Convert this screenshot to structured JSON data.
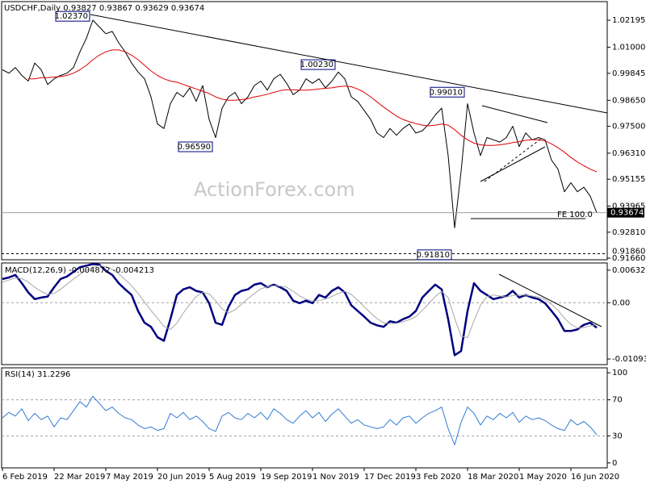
{
  "chart_data": [
    {
      "type": "line",
      "title": "USDCHF,Daily 0.93827 0.93867 0.93629 0.93674",
      "watermark": "ActionForex.com",
      "categories": [
        "6 Feb 2019",
        null,
        null,
        null,
        null,
        null,
        null,
        null,
        "22 Mar 2019",
        null,
        null,
        null,
        null,
        null,
        null,
        null,
        "7 May 2019",
        null,
        null,
        null,
        null,
        null,
        null,
        null,
        "20 Jun 2019",
        null,
        null,
        null,
        null,
        null,
        null,
        null,
        "5 Aug 2019",
        null,
        null,
        null,
        null,
        null,
        null,
        null,
        "19 Sep 2019",
        null,
        null,
        null,
        null,
        null,
        null,
        null,
        "1 Nov 2019",
        null,
        null,
        null,
        null,
        null,
        null,
        null,
        "17 Dec 2019",
        null,
        null,
        null,
        null,
        null,
        null,
        null,
        "3 Feb 2020",
        null,
        null,
        null,
        null,
        null,
        null,
        null,
        "18 Mar 2020",
        null,
        null,
        null,
        null,
        null,
        null,
        null,
        "1 May 2020",
        null,
        null,
        null,
        null,
        null,
        null,
        null,
        "16 Jun 2020",
        null,
        null,
        null,
        null
      ],
      "series": [
        {
          "name": "USDCHF",
          "color": "#000000",
          "values": [
            1.0,
            0.9985,
            1.001,
            0.9975,
            0.995,
            1.003,
            1.0,
            0.9935,
            0.996,
            0.9975,
            0.9985,
            1.001,
            1.008,
            1.014,
            1.022,
            1.019,
            1.016,
            1.017,
            1.012,
            1.008,
            1.003,
            0.999,
            0.996,
            0.988,
            0.976,
            0.974,
            0.985,
            0.99,
            0.988,
            0.992,
            0.986,
            0.993,
            0.978,
            0.97,
            0.983,
            0.988,
            0.99,
            0.985,
            0.988,
            0.993,
            0.995,
            0.991,
            0.996,
            0.998,
            0.994,
            0.989,
            0.991,
            0.996,
            0.994,
            0.996,
            0.992,
            0.995,
            0.999,
            0.996,
            0.988,
            0.986,
            0.982,
            0.978,
            0.972,
            0.97,
            0.974,
            0.971,
            0.974,
            0.976,
            0.972,
            0.973,
            0.976,
            0.98,
            0.983,
            0.962,
            0.93,
            0.955,
            0.985,
            0.972,
            0.962,
            0.97,
            0.969,
            0.968,
            0.97,
            0.975,
            0.966,
            0.972,
            0.969,
            0.97,
            0.969,
            0.96,
            0.956,
            0.946,
            0.95,
            0.946,
            0.948,
            0.944,
            0.93674
          ]
        },
        {
          "name": "MA",
          "color": "#dd0000",
          "values": [
            null,
            null,
            null,
            null,
            0.996,
            0.996,
            0.9965,
            0.9965,
            0.9968,
            0.997,
            0.9975,
            0.9985,
            1.0,
            1.002,
            1.0045,
            1.0065,
            1.008,
            1.0088,
            1.0088,
            1.008,
            1.0065,
            1.0045,
            1.002,
            0.9995,
            0.9975,
            0.996,
            0.995,
            0.9945,
            0.9935,
            0.9925,
            0.9915,
            0.9905,
            0.9895,
            0.988,
            0.987,
            0.9865,
            0.9865,
            0.9868,
            0.9872,
            0.988,
            0.9885,
            0.9892,
            0.99,
            0.9908,
            0.9912,
            0.9912,
            0.991,
            0.991,
            0.9912,
            0.9915,
            0.9918,
            0.992,
            0.9925,
            0.9928,
            0.9925,
            0.9915,
            0.99,
            0.988,
            0.9858,
            0.9835,
            0.9815,
            0.9795,
            0.978,
            0.977,
            0.9762,
            0.9755,
            0.9752,
            0.9755,
            0.976,
            0.9755,
            0.9735,
            0.971,
            0.969,
            0.9675,
            0.9668,
            0.9665,
            0.9665,
            0.9668,
            0.9672,
            0.9678,
            0.9682,
            0.9688,
            0.969,
            0.969,
            0.9685,
            0.9672,
            0.9655,
            0.9635,
            0.9612,
            0.9592,
            0.9575,
            0.956,
            0.9548
          ]
        }
      ],
      "ylim": [
        0.9159,
        1.0302
      ],
      "yticks": [
        1.02195,
        {
          "value": 1.01,
          "label": "1.01000"
        },
        0.99845,
        {
          "value": 0.9865,
          "label": "0.98650"
        },
        {
          "value": 0.975,
          "label": "0.97500"
        },
        {
          "value": 0.9631,
          "label": "0.96310"
        },
        0.95155,
        0.93965,
        {
          "value": 0.9281,
          "label": "0.92810"
        },
        {
          "value": 0.9166,
          "label": "0.91660"
        }
      ],
      "last_price": {
        "value": 0.93674,
        "label": "0.93674"
      },
      "support": {
        "value": 0.9186,
        "label": "0.91860"
      },
      "fe_label": "FE 100.0",
      "annotations": [
        {
          "label": "1.02370",
          "value": 1.0237,
          "index": 14
        },
        {
          "label": "0.96590",
          "value": 0.9659,
          "index": 33
        },
        {
          "label": "1.00230",
          "value": 1.0023,
          "index": 52
        },
        {
          "label": "0.91810",
          "value": 0.9181,
          "index": 70
        },
        {
          "label": "0.99010",
          "value": 0.9901,
          "index": 72
        }
      ]
    },
    {
      "type": "line",
      "title": "MACD(12,26,9) -0.004872 -0.004213",
      "series": [
        {
          "name": "MACD",
          "color": "#000080",
          "values": [
            0.0046,
            0.0049,
            0.0054,
            0.0038,
            0.002,
            0.0007,
            0.001,
            0.0012,
            0.003,
            0.0046,
            0.0051,
            0.006,
            0.0069,
            0.0072,
            0.0075,
            0.0074,
            0.0062,
            0.0054,
            0.0038,
            0.0026,
            0.0015,
            -0.0016,
            -0.0039,
            -0.0047,
            -0.0067,
            -0.0074,
            -0.0032,
            0.0015,
            0.0026,
            0.003,
            0.0023,
            0.002,
            -0.0001,
            -0.0039,
            -0.0043,
            -0.0008,
            0.0015,
            0.0023,
            0.0026,
            0.0035,
            0.0038,
            0.003,
            0.0035,
            0.003,
            0.0023,
            0.0004,
            -0.0001,
            0.0004,
            -0.0001,
            0.0015,
            0.001,
            0.0023,
            0.003,
            0.002,
            -0.0005,
            -0.0016,
            -0.0027,
            -0.0039,
            -0.0044,
            -0.0047,
            -0.0036,
            -0.0039,
            -0.0032,
            -0.0027,
            -0.0016,
            0.001,
            0.0023,
            0.0035,
            0.0026,
            -0.0032,
            -0.0102,
            -0.0094,
            -0.0016,
            0.0038,
            0.0023,
            0.0015,
            0.0007,
            0.001,
            0.0013,
            0.0023,
            0.001,
            0.0015,
            0.001,
            0.0007,
            -0.0001,
            -0.0016,
            -0.0032,
            -0.0055,
            -0.0055,
            -0.0052,
            -0.0043,
            -0.0039,
            -0.004872
          ]
        },
        {
          "name": "Signal",
          "color": "#a8a8a8",
          "values": [
            0.004,
            0.0044,
            0.0048,
            0.0047,
            0.004,
            0.003,
            0.0022,
            0.0016,
            0.0018,
            0.0026,
            0.0036,
            0.0046,
            0.0055,
            0.0063,
            0.0069,
            0.0072,
            0.007,
            0.0065,
            0.0056,
            0.0045,
            0.0033,
            0.0018,
            0.0001,
            -0.0015,
            -0.003,
            -0.0046,
            -0.0052,
            -0.004,
            -0.002,
            -0.0003,
            0.0012,
            0.002,
            0.0017,
            0.0004,
            -0.0012,
            -0.002,
            -0.0014,
            -0.0003,
            0.0008,
            0.0018,
            0.0027,
            0.0031,
            0.0033,
            0.0032,
            0.003,
            0.0022,
            0.0013,
            0.0007,
            0.0003,
            0.0004,
            0.0007,
            0.0012,
            0.0018,
            0.0022,
            0.0016,
            0.0005,
            -0.0008,
            -0.002,
            -0.0031,
            -0.0039,
            -0.0041,
            -0.004,
            -0.0037,
            -0.0033,
            -0.0027,
            -0.0015,
            -0.0002,
            0.0012,
            0.0022,
            0.001,
            -0.003,
            -0.0065,
            -0.0068,
            -0.0035,
            -0.0005,
            0.0012,
            0.0015,
            0.0013,
            0.0011,
            0.0014,
            0.0015,
            0.0015,
            0.0013,
            0.0011,
            0.0006,
            -0.0003,
            -0.0015,
            -0.003,
            -0.0042,
            -0.0049,
            -0.0048,
            -0.0045,
            -0.004213
          ]
        }
      ],
      "ylim": [
        -0.01203,
        0.00772
      ],
      "yticks": [
        0.006321,
        {
          "value": 0,
          "label": "0.00"
        },
        -0.010939
      ],
      "hlines": [
        0
      ]
    },
    {
      "type": "line",
      "title": "RSI(14) 31.2296",
      "series": [
        {
          "name": "RSI",
          "color": "#2f7bd6",
          "values": [
            50,
            56,
            52,
            60,
            47,
            55,
            48,
            52,
            40,
            50,
            48,
            58,
            68,
            62,
            74,
            66,
            58,
            62,
            55,
            50,
            48,
            42,
            38,
            40,
            36,
            38,
            55,
            50,
            56,
            48,
            52,
            46,
            38,
            35,
            52,
            56,
            50,
            48,
            55,
            50,
            56,
            48,
            60,
            55,
            48,
            44,
            52,
            58,
            50,
            56,
            46,
            54,
            60,
            52,
            44,
            48,
            42,
            40,
            38,
            40,
            48,
            42,
            50,
            52,
            44,
            50,
            55,
            58,
            62,
            38,
            20,
            45,
            62,
            55,
            42,
            52,
            48,
            55,
            50,
            56,
            45,
            52,
            48,
            50,
            47,
            42,
            38,
            36,
            48,
            42,
            46,
            40,
            31.2296
          ]
        }
      ],
      "ylim": [
        -5.5,
        105.5
      ],
      "yticks": [
        100,
        70,
        30,
        0
      ],
      "hlines": [
        70,
        30
      ]
    }
  ]
}
